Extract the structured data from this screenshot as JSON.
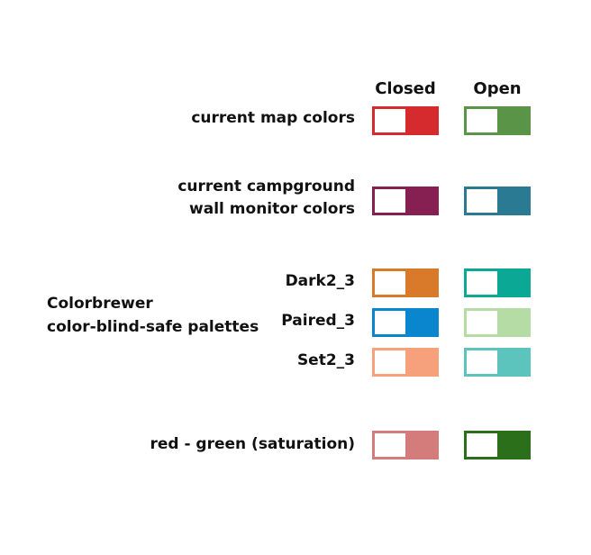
{
  "headers": {
    "closed": "Closed",
    "open": "Open"
  },
  "group_label": {
    "line1": "Colorbrewer",
    "line2": "color-blind-safe palettes"
  },
  "rows": [
    {
      "label": "current map colors",
      "closed_color": "#d62b2e",
      "open_color": "#5a9447"
    },
    {
      "label_line1": "current campground",
      "label_line2": "wall monitor colors",
      "closed_color": "#861f52",
      "open_color": "#2a7a93"
    },
    {
      "label": "Dark2_3",
      "closed_color": "#d87a2a",
      "open_color": "#0ba896"
    },
    {
      "label": "Paired_3",
      "closed_color": "#0a86cf",
      "open_color": "#b6dca5"
    },
    {
      "label": "Set2_3",
      "closed_color": "#f7a07c",
      "open_color": "#5cc4bd"
    },
    {
      "label": "red - green (saturation)",
      "closed_color": "#d47b7c",
      "open_color": "#2b6f1a"
    }
  ]
}
